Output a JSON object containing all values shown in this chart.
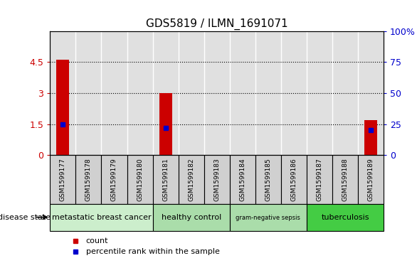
{
  "title": "GDS5819 / ILMN_1691071",
  "samples": [
    "GSM1599177",
    "GSM1599178",
    "GSM1599179",
    "GSM1599180",
    "GSM1599181",
    "GSM1599182",
    "GSM1599183",
    "GSM1599184",
    "GSM1599185",
    "GSM1599186",
    "GSM1599187",
    "GSM1599188",
    "GSM1599189"
  ],
  "counts": [
    4.6,
    0,
    0,
    0,
    3.0,
    0,
    0,
    0,
    0,
    0,
    0,
    0,
    1.7
  ],
  "percentiles": [
    25,
    0,
    0,
    0,
    22,
    0,
    0,
    0,
    0,
    0,
    0,
    0,
    20
  ],
  "ylim_left": [
    0,
    6
  ],
  "ylim_right": [
    0,
    100
  ],
  "yticks_left": [
    0,
    1.5,
    3.0,
    4.5
  ],
  "yticks_right": [
    0,
    25,
    50,
    75,
    100
  ],
  "groups": [
    {
      "label": "metastatic breast cancer",
      "start": 0,
      "end": 3,
      "color": "#cceecc"
    },
    {
      "label": "healthy control",
      "start": 4,
      "end": 6,
      "color": "#aaddaa"
    },
    {
      "label": "gram-negative sepsis",
      "start": 7,
      "end": 9,
      "color": "#aaddaa"
    },
    {
      "label": "tuberculosis",
      "start": 10,
      "end": 12,
      "color": "#44cc44"
    }
  ],
  "bar_color": "#cc0000",
  "dot_color": "#0000cc",
  "right_axis_color": "#0000cc",
  "left_axis_color": "#cc0000",
  "disease_state_label": "disease state",
  "legend_count": "count",
  "legend_percentile": "percentile rank within the sample",
  "sample_box_color": "#d0d0d0",
  "chart_bg": "#ffffff"
}
